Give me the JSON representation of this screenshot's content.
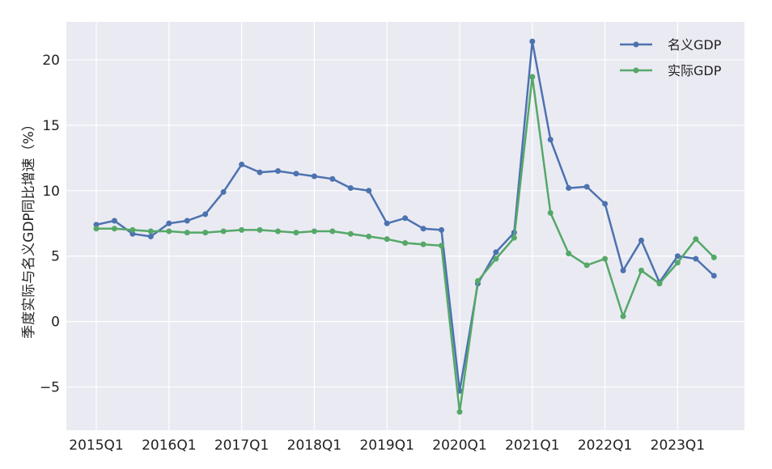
{
  "chart_data": {
    "type": "line",
    "title": "",
    "xlabel": "",
    "ylabel": "季度实际与名义GDP同比增速（%）",
    "ylim": [
      -8.3,
      22.9
    ],
    "y_ticks": [
      -5,
      0,
      5,
      10,
      15,
      20
    ],
    "y_tick_labels": [
      "−5",
      "0",
      "5",
      "10",
      "15",
      "20"
    ],
    "x_ticks": [
      "2015Q1",
      "2016Q1",
      "2017Q1",
      "2018Q1",
      "2019Q1",
      "2020Q1",
      "2021Q1",
      "2022Q1",
      "2023Q1"
    ],
    "grid": true,
    "legend_position": "top-right",
    "x": [
      "2015Q1",
      "2015Q2",
      "2015Q3",
      "2015Q4",
      "2016Q1",
      "2016Q2",
      "2016Q3",
      "2016Q4",
      "2017Q1",
      "2017Q2",
      "2017Q3",
      "2017Q4",
      "2018Q1",
      "2018Q2",
      "2018Q3",
      "2018Q4",
      "2019Q1",
      "2019Q2",
      "2019Q3",
      "2019Q4",
      "2020Q1",
      "2020Q2",
      "2020Q3",
      "2020Q4",
      "2021Q1",
      "2021Q2",
      "2021Q3",
      "2021Q4",
      "2022Q1",
      "2022Q2",
      "2022Q3",
      "2022Q4",
      "2023Q1",
      "2023Q2",
      "2023Q3"
    ],
    "series": [
      {
        "name": "名义GDP",
        "color": "#4c72b0",
        "values": [
          7.4,
          7.7,
          6.7,
          6.5,
          7.5,
          7.7,
          8.2,
          9.9,
          12.0,
          11.4,
          11.5,
          11.3,
          11.1,
          10.9,
          10.2,
          10.0,
          7.5,
          7.9,
          7.1,
          7.0,
          -5.3,
          2.9,
          5.3,
          6.8,
          21.4,
          13.9,
          10.2,
          10.3,
          9.0,
          3.9,
          6.2,
          3.0,
          5.0,
          4.8,
          3.5
        ]
      },
      {
        "name": "实际GDP",
        "color": "#55a868",
        "values": [
          7.1,
          7.1,
          7.0,
          6.9,
          6.9,
          6.8,
          6.8,
          6.9,
          7.0,
          7.0,
          6.9,
          6.8,
          6.9,
          6.9,
          6.7,
          6.5,
          6.3,
          6.0,
          5.9,
          5.8,
          -6.9,
          3.1,
          4.8,
          6.4,
          18.7,
          8.3,
          5.2,
          4.3,
          4.8,
          0.4,
          3.9,
          2.9,
          4.5,
          6.3,
          4.9
        ]
      }
    ]
  }
}
